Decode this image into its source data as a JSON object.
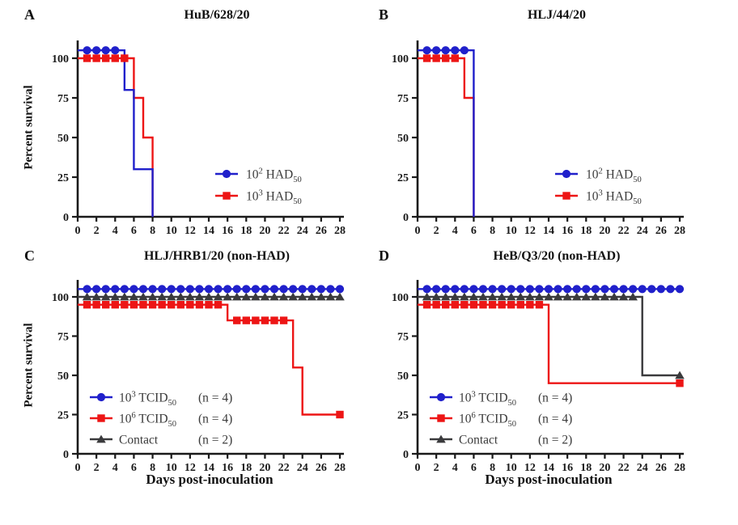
{
  "figure": {
    "background": "#ffffff",
    "colors": {
      "blue": "#2020cb",
      "red": "#ed1515",
      "dark": "#3a3a3c",
      "axis": "#1a1a1a",
      "legend_text": "#3a3a3a"
    }
  },
  "chart_data": [
    {
      "type": "line",
      "panel_letter": "A",
      "title": "HuB/628/20",
      "xlabel": "",
      "ylabel": "Percent survival",
      "xlim": [
        0,
        28
      ],
      "ylim": [
        0,
        110
      ],
      "xticks": [
        0,
        2,
        4,
        6,
        8,
        10,
        12,
        14,
        16,
        18,
        20,
        22,
        24,
        26,
        28
      ],
      "yticks": [
        0,
        25,
        50,
        75,
        100
      ],
      "grid": false,
      "legend_position": "inside-right",
      "series": [
        {
          "label": {
            "pre": "10",
            "sup": "2",
            "mid": " HAD",
            "sub": "50"
          },
          "n_label": "",
          "color_key": "blue",
          "marker": "circle",
          "steps": [
            [
              0,
              105
            ],
            [
              5,
              105
            ],
            [
              5,
              80
            ],
            [
              6,
              80
            ],
            [
              6,
              30
            ],
            [
              8,
              30
            ],
            [
              8,
              0
            ]
          ],
          "marker_runs": [
            {
              "from": 1,
              "to": 4,
              "y": 105
            }
          ],
          "marker_points": []
        },
        {
          "label": {
            "pre": "10",
            "sup": "3",
            "mid": " HAD",
            "sub": "50"
          },
          "n_label": "",
          "color_key": "red",
          "marker": "square",
          "steps": [
            [
              0,
              100
            ],
            [
              6,
              100
            ],
            [
              6,
              75
            ],
            [
              7,
              75
            ],
            [
              7,
              50
            ],
            [
              8,
              50
            ],
            [
              8,
              0
            ]
          ],
          "marker_runs": [
            {
              "from": 1,
              "to": 5,
              "y": 100
            }
          ],
          "marker_points": []
        }
      ]
    },
    {
      "type": "line",
      "panel_letter": "B",
      "title": "HLJ/44/20",
      "xlabel": "",
      "ylabel": "",
      "xlim": [
        0,
        28
      ],
      "ylim": [
        0,
        110
      ],
      "xticks": [
        0,
        2,
        4,
        6,
        8,
        10,
        12,
        14,
        16,
        18,
        20,
        22,
        24,
        26,
        28
      ],
      "yticks": [
        0,
        25,
        50,
        75,
        100
      ],
      "grid": false,
      "legend_position": "inside-right",
      "series": [
        {
          "label": {
            "pre": "10",
            "sup": "2",
            "mid": " HAD",
            "sub": "50"
          },
          "n_label": "",
          "color_key": "blue",
          "marker": "circle",
          "steps": [
            [
              0,
              105
            ],
            [
              6,
              105
            ],
            [
              6,
              0
            ]
          ],
          "marker_runs": [
            {
              "from": 1,
              "to": 5,
              "y": 105
            }
          ],
          "marker_points": []
        },
        {
          "label": {
            "pre": "10",
            "sup": "3",
            "mid": " HAD",
            "sub": "50"
          },
          "n_label": "",
          "color_key": "red",
          "marker": "square",
          "steps": [
            [
              0,
              100
            ],
            [
              5,
              100
            ],
            [
              5,
              75
            ],
            [
              6,
              75
            ],
            [
              6,
              0
            ]
          ],
          "marker_runs": [
            {
              "from": 1,
              "to": 4,
              "y": 100
            }
          ],
          "marker_points": []
        }
      ]
    },
    {
      "type": "line",
      "panel_letter": "C",
      "title": "HLJ/HRB1/20 (non-HAD)",
      "xlabel": "Days post-inoculation",
      "ylabel": "Percent survival",
      "xlim": [
        0,
        28
      ],
      "ylim": [
        0,
        110
      ],
      "xticks": [
        0,
        2,
        4,
        6,
        8,
        10,
        12,
        14,
        16,
        18,
        20,
        22,
        24,
        26,
        28
      ],
      "yticks": [
        0,
        25,
        50,
        75,
        100
      ],
      "grid": false,
      "legend_position": "inside-left-bottom",
      "series": [
        {
          "label": {
            "pre": "10",
            "sup": "3",
            "mid": " TCID",
            "sub": "50"
          },
          "n_label": "(n = 4)",
          "color_key": "blue",
          "marker": "circle",
          "steps": [
            [
              0,
              105
            ],
            [
              28,
              105
            ]
          ],
          "marker_runs": [
            {
              "from": 1,
              "to": 28,
              "y": 105
            }
          ],
          "marker_points": []
        },
        {
          "label": {
            "pre": "10",
            "sup": "6",
            "mid": " TCID",
            "sub": "50"
          },
          "n_label": "(n = 4)",
          "color_key": "red",
          "marker": "square",
          "steps": [
            [
              0,
              95
            ],
            [
              16,
              95
            ],
            [
              16,
              85
            ],
            [
              23,
              85
            ],
            [
              23,
              55
            ],
            [
              24,
              55
            ],
            [
              24,
              25
            ],
            [
              28,
              25
            ]
          ],
          "marker_runs": [
            {
              "from": 1,
              "to": 15,
              "y": 95
            },
            {
              "from": 17,
              "to": 22,
              "y": 85
            }
          ],
          "marker_points": [
            [
              28,
              25
            ]
          ]
        },
        {
          "label": {
            "pre": "Contact",
            "sup": "",
            "mid": "",
            "sub": ""
          },
          "n_label": "(n = 2)",
          "color_key": "dark",
          "marker": "triangle",
          "steps": [
            [
              0,
              100
            ],
            [
              28,
              100
            ]
          ],
          "marker_runs": [
            {
              "from": 1,
              "to": 28,
              "y": 100
            }
          ],
          "marker_points": []
        }
      ]
    },
    {
      "type": "line",
      "panel_letter": "D",
      "title": "HeB/Q3/20 (non-HAD)",
      "xlabel": "Days post-inoculation",
      "ylabel": "",
      "xlim": [
        0,
        28
      ],
      "ylim": [
        0,
        110
      ],
      "xticks": [
        0,
        2,
        4,
        6,
        8,
        10,
        12,
        14,
        16,
        18,
        20,
        22,
        24,
        26,
        28
      ],
      "yticks": [
        0,
        25,
        50,
        75,
        100
      ],
      "grid": false,
      "legend_position": "inside-left-bottom",
      "series": [
        {
          "label": {
            "pre": "10",
            "sup": "3",
            "mid": " TCID",
            "sub": "50"
          },
          "n_label": "(n = 4)",
          "color_key": "blue",
          "marker": "circle",
          "steps": [
            [
              0,
              105
            ],
            [
              28,
              105
            ]
          ],
          "marker_runs": [
            {
              "from": 1,
              "to": 28,
              "y": 105
            }
          ],
          "marker_points": []
        },
        {
          "label": {
            "pre": "10",
            "sup": "6",
            "mid": " TCID",
            "sub": "50"
          },
          "n_label": "(n = 4)",
          "color_key": "red",
          "marker": "square",
          "steps": [
            [
              0,
              95
            ],
            [
              14,
              95
            ],
            [
              14,
              45
            ],
            [
              28,
              45
            ]
          ],
          "marker_runs": [
            {
              "from": 1,
              "to": 13,
              "y": 95
            }
          ],
          "marker_points": [
            [
              28,
              45
            ]
          ]
        },
        {
          "label": {
            "pre": "Contact",
            "sup": "",
            "mid": "",
            "sub": ""
          },
          "n_label": "(n = 2)",
          "color_key": "dark",
          "marker": "triangle",
          "steps": [
            [
              0,
              100
            ],
            [
              24,
              100
            ],
            [
              24,
              50
            ],
            [
              28,
              50
            ]
          ],
          "marker_runs": [
            {
              "from": 1,
              "to": 23,
              "y": 100
            }
          ],
          "marker_points": [
            [
              28,
              50
            ]
          ]
        }
      ]
    }
  ]
}
